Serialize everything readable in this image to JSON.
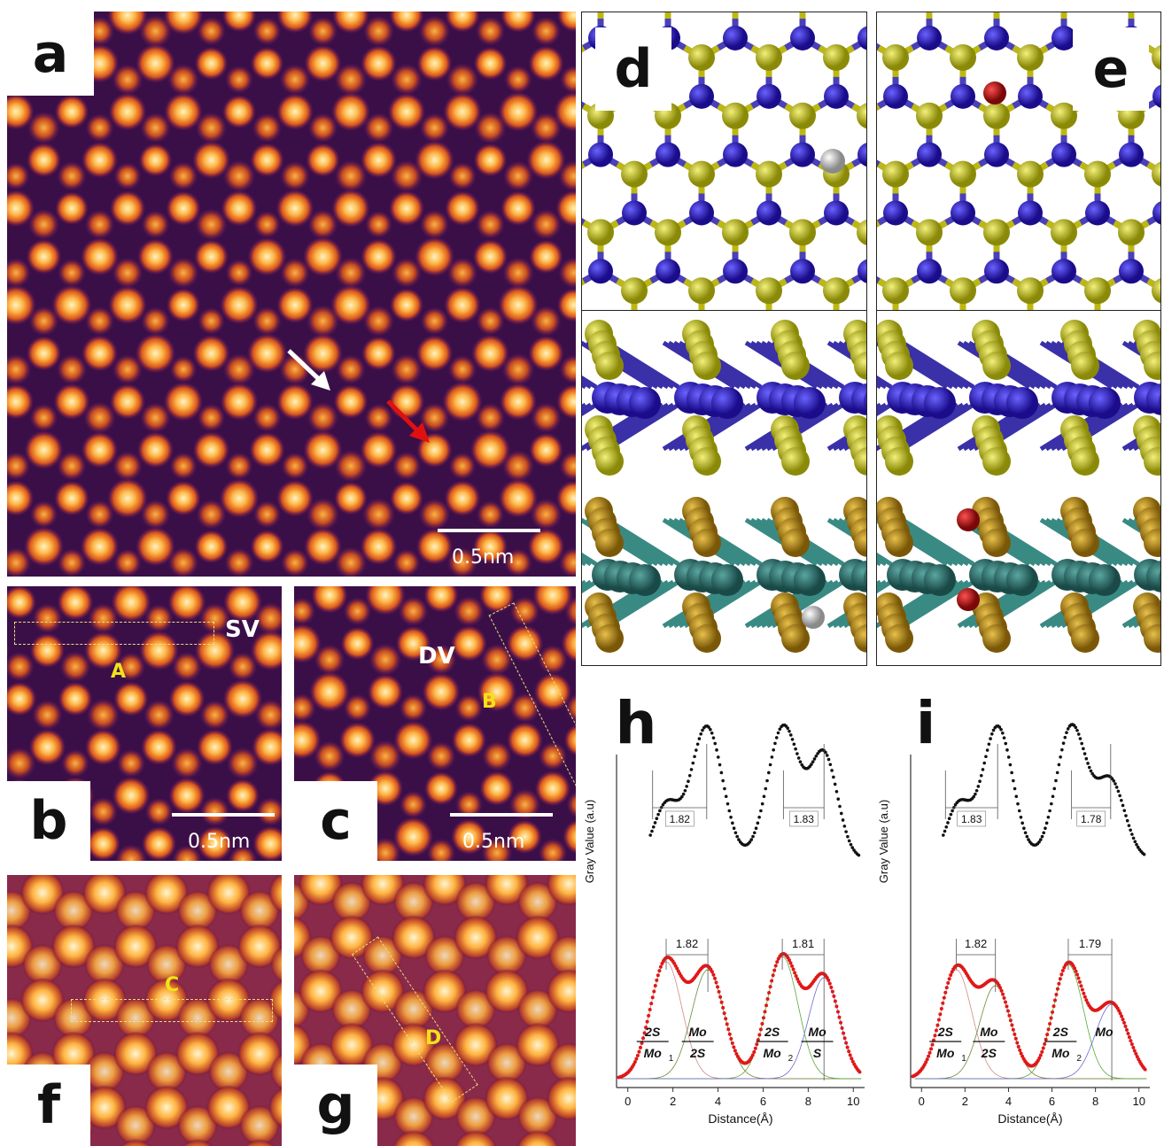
{
  "panels": {
    "a": {
      "label": "a",
      "scale": "0.5nm"
    },
    "b": {
      "label": "b",
      "scale": "0.5nm",
      "tag": "SV",
      "site": "A"
    },
    "c": {
      "label": "c",
      "scale": "0.5nm",
      "tag": "DV",
      "site": "B"
    },
    "d": {
      "label": "d"
    },
    "e": {
      "label": "e"
    },
    "f": {
      "label": "f",
      "site": "C"
    },
    "g": {
      "label": "g",
      "site": "D"
    },
    "h": {
      "label": "h"
    },
    "i": {
      "label": "i"
    }
  },
  "colors": {
    "mo": "#2a1ab0",
    "s": "#c9c412",
    "w": "#2e6e6a",
    "se": "#b88a12",
    "vacancy": "#c8c8c8",
    "sub": "#b01010",
    "stem_dark": "#1a0a28",
    "stem_bright": "#ffd88a"
  },
  "chart_data": [
    {
      "type": "scatter",
      "panel": "h",
      "xlabel": "Distance(Å)",
      "ylabel": "Gray Value (a.u)",
      "xlim": [
        -0.5,
        10.5
      ],
      "xticks": [
        0,
        2,
        4,
        6,
        8,
        10
      ],
      "top_labels": [
        "1.82",
        "1.83"
      ],
      "bottom_labels": [
        "1.82",
        "1.81"
      ],
      "peak_labels": [
        {
          "num": "2S",
          "den": "Mo",
          "sub": "1"
        },
        {
          "num": "Mo",
          "den": "2S",
          "sub": ""
        },
        {
          "num": "2S",
          "den": "Mo",
          "sub": "2"
        },
        {
          "num": "Mo",
          "den": "S",
          "sub": ""
        }
      ],
      "top_peaks": [
        {
          "x": 1.7,
          "h": 0.4,
          "w": 0.55
        },
        {
          "x": 3.5,
          "h": 1.0,
          "w": 0.7
        },
        {
          "x": 6.9,
          "h": 1.0,
          "w": 0.7
        },
        {
          "x": 8.7,
          "h": 0.78,
          "w": 0.6
        }
      ],
      "top_dips": [
        [
          2.6,
          0.72
        ],
        [
          8.0,
          0.55
        ]
      ],
      "bottom_peaks": [
        {
          "x": 1.7,
          "h": 0.88,
          "w": 0.7
        },
        {
          "x": 3.55,
          "h": 0.82,
          "w": 0.72
        },
        {
          "x": 6.85,
          "h": 0.92,
          "w": 0.7
        },
        {
          "x": 8.7,
          "h": 0.76,
          "w": 0.68
        }
      ]
    },
    {
      "type": "scatter",
      "panel": "i",
      "xlabel": "Distance(Å)",
      "ylabel": "Gray Value (a.u)",
      "xlim": [
        -0.5,
        10.5
      ],
      "xticks": [
        0,
        2,
        4,
        6,
        8,
        10
      ],
      "top_labels": [
        "1.83",
        "1.78"
      ],
      "bottom_labels": [
        "1.82",
        "1.79"
      ],
      "peak_labels": [
        {
          "num": "2S",
          "den": "Mo",
          "sub": "1"
        },
        {
          "num": "Mo",
          "den": "2S",
          "sub": ""
        },
        {
          "num": "2S",
          "den": "Mo",
          "sub": "2"
        },
        {
          "num": "Mo",
          "den": "",
          "sub": ""
        }
      ],
      "top_peaks": [
        {
          "x": 1.7,
          "h": 0.4,
          "w": 0.55
        },
        {
          "x": 3.5,
          "h": 1.0,
          "w": 0.7
        },
        {
          "x": 6.9,
          "h": 1.0,
          "w": 0.7
        },
        {
          "x": 8.7,
          "h": 0.58,
          "w": 0.65
        }
      ],
      "top_dips": [
        [
          2.6,
          0.72
        ],
        [
          8.0,
          0.66
        ]
      ],
      "bottom_peaks": [
        {
          "x": 1.6,
          "h": 0.82,
          "w": 0.72
        },
        {
          "x": 3.4,
          "h": 0.7,
          "w": 0.72
        },
        {
          "x": 6.75,
          "h": 0.86,
          "w": 0.7
        },
        {
          "x": 8.75,
          "h": 0.56,
          "w": 0.75
        }
      ]
    }
  ]
}
